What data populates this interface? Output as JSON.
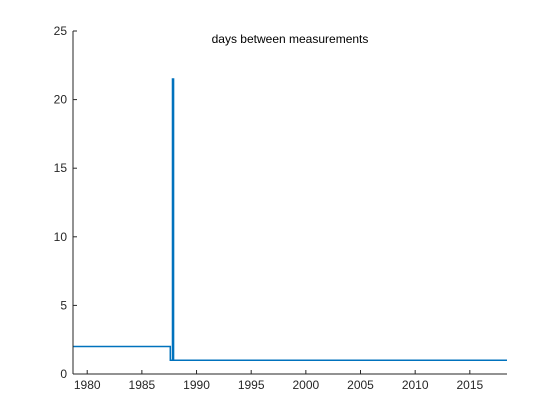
{
  "chart_data": {
    "type": "line",
    "title": "days between measurements",
    "xlabel": "",
    "ylabel": "",
    "xlim": [
      1978.7,
      2018.4
    ],
    "ylim": [
      0,
      25
    ],
    "x_ticks": [
      "1980",
      "1985",
      "1990",
      "1995",
      "2000",
      "2005",
      "2010",
      "2015"
    ],
    "y_ticks": [
      "0",
      "5",
      "10",
      "15",
      "20",
      "25"
    ],
    "grid": false,
    "legend": "none",
    "series": [
      {
        "color": "#0072bd",
        "x": [
          1978.7,
          1987.6,
          1987.6,
          1987.8,
          1987.8,
          1987.9,
          1987.9,
          1988.0,
          1988.0,
          2018.4
        ],
        "y": [
          2,
          2,
          1,
          1,
          21.5,
          21.5,
          1,
          1,
          1,
          1
        ]
      }
    ]
  }
}
